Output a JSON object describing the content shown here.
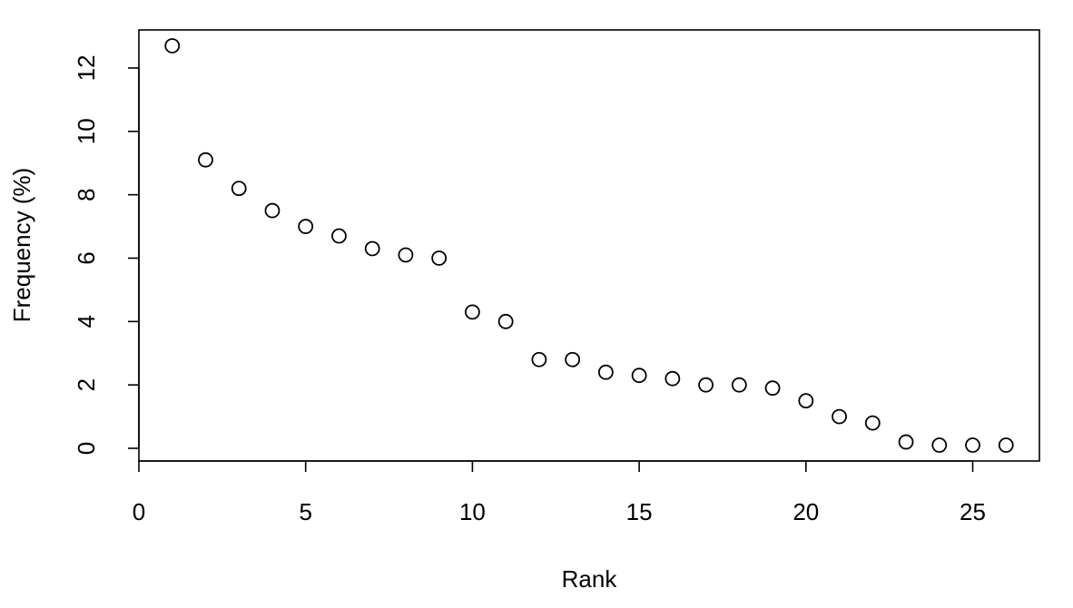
{
  "chart_data": {
    "type": "scatter",
    "xlabel": "Rank",
    "ylabel": "Frequency (%)",
    "x": [
      1,
      2,
      3,
      4,
      5,
      6,
      7,
      8,
      9,
      10,
      11,
      12,
      13,
      14,
      15,
      16,
      17,
      18,
      19,
      20,
      21,
      22,
      23,
      24,
      25,
      26
    ],
    "values": [
      12.7,
      9.1,
      8.2,
      7.5,
      7.0,
      6.7,
      6.3,
      6.1,
      6.0,
      4.3,
      4.0,
      2.8,
      2.8,
      2.4,
      2.3,
      2.2,
      2.0,
      2.0,
      1.9,
      1.5,
      1.0,
      0.8,
      0.2,
      0.1,
      0.1,
      0.1
    ],
    "color": "#000000",
    "xlim": [
      0,
      27
    ],
    "ylim": [
      -0.4,
      13.2
    ],
    "xticks": [
      0,
      5,
      10,
      15,
      20,
      25
    ],
    "yticks": [
      0,
      2,
      4,
      6,
      8,
      10,
      12
    ]
  }
}
